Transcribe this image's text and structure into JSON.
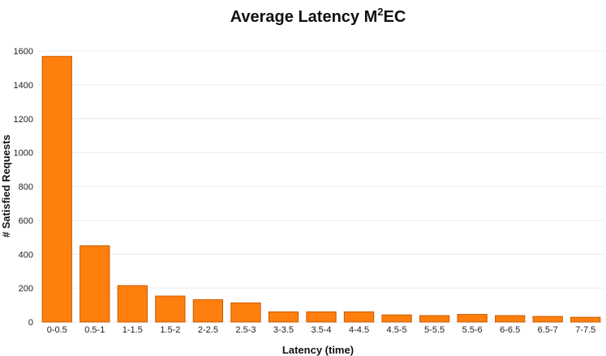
{
  "chart_data": {
    "type": "bar",
    "title": "Average Latency M",
    "title_superscript": "2",
    "title_suffix": "EC",
    "xlabel": "Latency (time)",
    "ylabel": "# Satisfied Requests",
    "categories": [
      "0-0.5",
      "0.5-1",
      "1-1.5",
      "1.5-2",
      "2-2.5",
      "2.5-3",
      "3-3.5",
      "3.5-4",
      "4-4.5",
      "4.5-5",
      "5-5.5",
      "5.5-6",
      "6-6.5",
      "6.5-7",
      "7-7.5"
    ],
    "values": [
      1568,
      450,
      215,
      153,
      132,
      113,
      60,
      60,
      60,
      42,
      38,
      45,
      38,
      33,
      28
    ],
    "ylim": [
      0,
      1600
    ],
    "yticks": [
      "0",
      "200",
      "400",
      "600",
      "800",
      "1000",
      "1200",
      "1400",
      "1600"
    ],
    "grid": true,
    "bar_color": "#ff7f0e"
  }
}
